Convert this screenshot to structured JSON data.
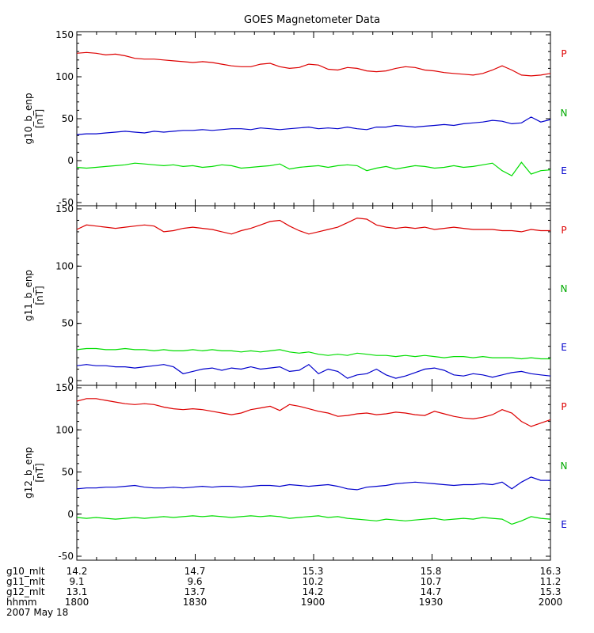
{
  "chart_data": {
    "title": "GOES Magnetometer Data",
    "x": {
      "range": [
        1800,
        2000
      ],
      "ticks_hhmm": [
        "1800",
        "1830",
        "1900",
        "1930",
        "2000"
      ]
    },
    "footer": {
      "rows": [
        {
          "label": "g10_mlt",
          "values": [
            "14.2",
            "14.7",
            "15.3",
            "15.8",
            "16.3"
          ]
        },
        {
          "label": "g11_mlt",
          "values": [
            "9.1",
            "9.6",
            "10.2",
            "10.7",
            "11.2"
          ]
        },
        {
          "label": "g12_mlt",
          "values": [
            "13.1",
            "13.7",
            "14.2",
            "14.7",
            "15.3"
          ]
        },
        {
          "label": "hhmm",
          "values": [
            "1800",
            "1830",
            "1900",
            "1930",
            "2000"
          ]
        }
      ],
      "date": "2007 May 18"
    },
    "panels": [
      {
        "ylabel": "g10_b_enp",
        "yunits": "[nT]",
        "ylim": [
          -50,
          150
        ],
        "yticks": [
          -50,
          0,
          50,
          100,
          150
        ],
        "series": [
          {
            "name": "P",
            "color": "#dd0000",
            "values": [
              128,
              129,
              128,
              126,
              127,
              125,
              122,
              121,
              121,
              120,
              119,
              118,
              117,
              118,
              117,
              115,
              113,
              112,
              112,
              115,
              116,
              112,
              110,
              111,
              115,
              114,
              109,
              108,
              111,
              110,
              107,
              106,
              107,
              110,
              112,
              111,
              108,
              107,
              105,
              104,
              103,
              102,
              104,
              108,
              113,
              108,
              102,
              101,
              102,
              104
            ]
          },
          {
            "name": "N",
            "color": "#0000cc",
            "values": [
              31,
              32,
              32,
              33,
              34,
              35,
              34,
              33,
              35,
              34,
              35,
              36,
              36,
              37,
              36,
              37,
              38,
              38,
              37,
              39,
              38,
              37,
              38,
              39,
              40,
              38,
              39,
              38,
              40,
              38,
              37,
              40,
              40,
              42,
              41,
              40,
              41,
              42,
              43,
              42,
              44,
              45,
              46,
              48,
              47,
              44,
              45,
              52,
              46,
              49
            ]
          },
          {
            "name": "E",
            "color": "#00dd00",
            "values": [
              -8,
              -9,
              -8,
              -7,
              -6,
              -5,
              -3,
              -4,
              -5,
              -6,
              -5,
              -7,
              -6,
              -8,
              -7,
              -5,
              -6,
              -9,
              -8,
              -7,
              -6,
              -4,
              -10,
              -8,
              -7,
              -6,
              -8,
              -6,
              -5,
              -6,
              -12,
              -9,
              -7,
              -10,
              -8,
              -6,
              -7,
              -9,
              -8,
              -6,
              -8,
              -7,
              -5,
              -3,
              -12,
              -18,
              -2,
              -16,
              -12,
              -11
            ]
          }
        ],
        "series_labels": [
          "P",
          "N",
          "E"
        ]
      },
      {
        "ylabel": "g11_b_enp",
        "yunits": "[nT]",
        "ylim": [
          0,
          150
        ],
        "yticks": [
          0,
          50,
          100,
          150
        ],
        "series": [
          {
            "name": "P",
            "color": "#dd0000",
            "values": [
              132,
              136,
              135,
              134,
              133,
              134,
              135,
              136,
              135,
              130,
              131,
              133,
              134,
              133,
              132,
              130,
              128,
              131,
              133,
              136,
              139,
              140,
              135,
              131,
              128,
              130,
              132,
              134,
              138,
              142,
              141,
              136,
              134,
              133,
              134,
              133,
              134,
              132,
              133,
              134,
              133,
              132,
              132,
              132,
              131,
              131,
              130,
              132,
              131,
              131
            ]
          },
          {
            "name": "N",
            "color": "#00dd00",
            "values": [
              27,
              28,
              28,
              27,
              27,
              28,
              27,
              27,
              26,
              27,
              26,
              26,
              27,
              26,
              27,
              26,
              26,
              25,
              26,
              25,
              26,
              27,
              25,
              24,
              25,
              23,
              22,
              23,
              22,
              24,
              23,
              22,
              22,
              21,
              22,
              21,
              22,
              21,
              20,
              21,
              21,
              20,
              21,
              20,
              20,
              20,
              19,
              20,
              19,
              19
            ]
          },
          {
            "name": "E",
            "color": "#0000cc",
            "values": [
              13,
              14,
              13,
              13,
              12,
              12,
              11,
              12,
              13,
              14,
              12,
              6,
              8,
              10,
              11,
              9,
              11,
              10,
              12,
              10,
              11,
              12,
              8,
              9,
              14,
              6,
              10,
              8,
              2,
              5,
              6,
              10,
              5,
              2,
              4,
              7,
              10,
              11,
              9,
              5,
              4,
              6,
              5,
              3,
              5,
              7,
              8,
              6,
              5,
              4
            ]
          }
        ],
        "series_labels": [
          "P",
          "N",
          "E"
        ]
      },
      {
        "ylabel": "g12_b_enp",
        "yunits": "[nT]",
        "ylim": [
          -50,
          150
        ],
        "yticks": [
          -50,
          0,
          50,
          100,
          150
        ],
        "series": [
          {
            "name": "P",
            "color": "#dd0000",
            "values": [
              134,
              137,
              137,
              135,
              133,
              131,
              130,
              131,
              130,
              127,
              125,
              124,
              125,
              124,
              122,
              120,
              118,
              120,
              124,
              126,
              128,
              123,
              130,
              128,
              125,
              122,
              120,
              116,
              117,
              119,
              120,
              118,
              119,
              121,
              120,
              118,
              117,
              122,
              119,
              116,
              114,
              113,
              115,
              118,
              124,
              120,
              110,
              104,
              108,
              112
            ]
          },
          {
            "name": "N",
            "color": "#0000cc",
            "values": [
              30,
              31,
              31,
              32,
              32,
              33,
              34,
              32,
              31,
              31,
              32,
              31,
              32,
              33,
              32,
              33,
              33,
              32,
              33,
              34,
              34,
              33,
              35,
              34,
              33,
              34,
              35,
              33,
              30,
              29,
              32,
              33,
              34,
              36,
              37,
              38,
              37,
              36,
              35,
              34,
              35,
              35,
              36,
              35,
              38,
              30,
              38,
              44,
              40,
              40
            ]
          },
          {
            "name": "E",
            "color": "#00dd00",
            "values": [
              -4,
              -5,
              -4,
              -5,
              -6,
              -5,
              -4,
              -5,
              -4,
              -3,
              -4,
              -3,
              -2,
              -3,
              -2,
              -3,
              -4,
              -3,
              -2,
              -3,
              -2,
              -3,
              -5,
              -4,
              -3,
              -2,
              -4,
              -3,
              -5,
              -6,
              -7,
              -8,
              -6,
              -7,
              -8,
              -7,
              -6,
              -5,
              -7,
              -6,
              -5,
              -6,
              -4,
              -5,
              -6,
              -12,
              -8,
              -3,
              -5,
              -6
            ]
          }
        ],
        "series_labels": [
          "P",
          "N",
          "E"
        ]
      }
    ]
  }
}
